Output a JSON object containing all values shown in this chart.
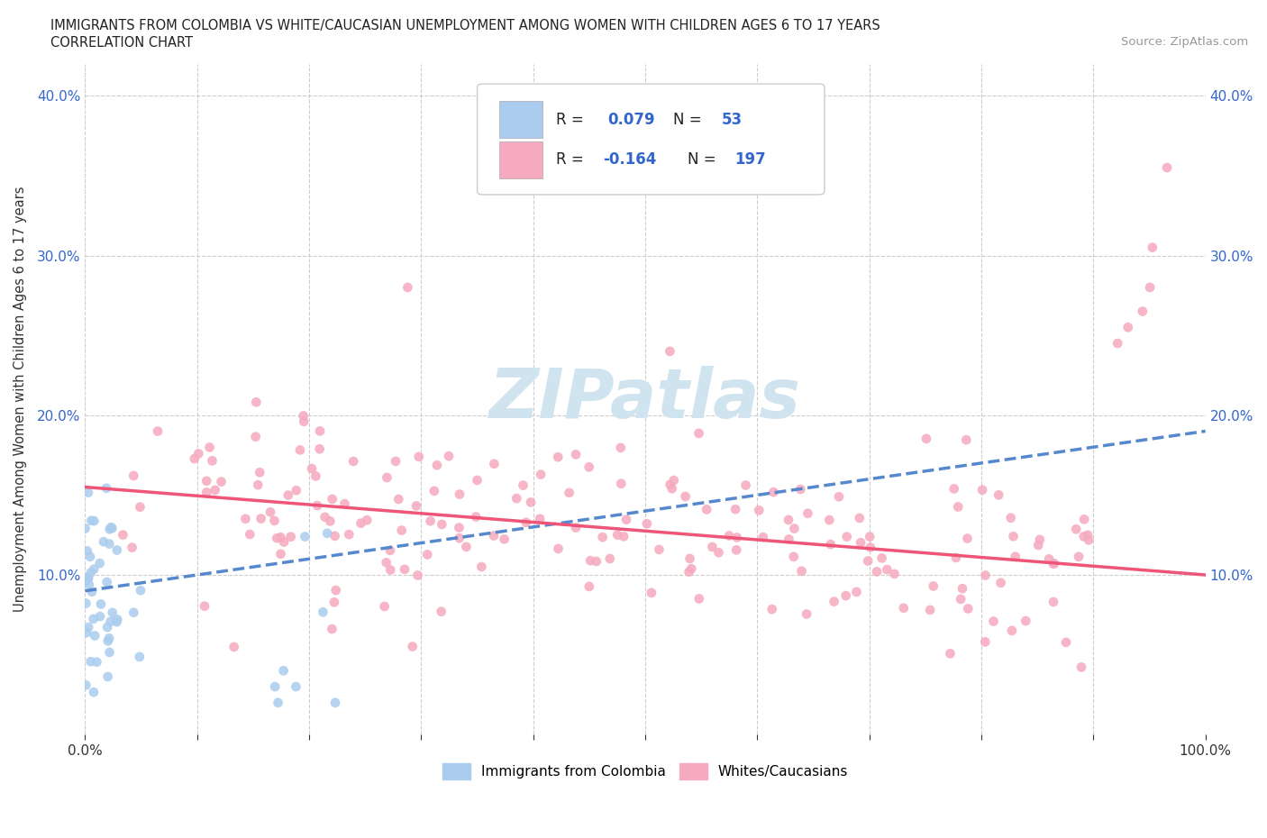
{
  "title_line1": "IMMIGRANTS FROM COLOMBIA VS WHITE/CAUCASIAN UNEMPLOYMENT AMONG WOMEN WITH CHILDREN AGES 6 TO 17 YEARS",
  "title_line2": "CORRELATION CHART",
  "source_text": "Source: ZipAtlas.com",
  "ylabel": "Unemployment Among Women with Children Ages 6 to 17 years",
  "xlim": [
    0.0,
    1.0
  ],
  "ylim": [
    0.0,
    0.42
  ],
  "grid_color": "#cccccc",
  "background_color": "#ffffff",
  "colombia_color": "#aaccee",
  "white_color": "#f5aabf",
  "colombia_line_color": "#5588cc",
  "white_line_color": "#ee5577",
  "legend_value_color": "#3366cc",
  "watermark_color": "#d0e4f0",
  "watermark_text": "ZIPatlas"
}
